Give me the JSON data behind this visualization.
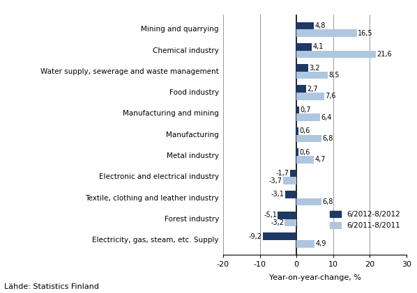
{
  "categories": [
    "Electricity, gas, steam, etc. Supply",
    "Forest industry",
    "Textile, clothing and leather industry",
    "Electronic and electrical industry",
    "Metal industry",
    "Manufacturing",
    "Manufacturing and mining",
    "Food industry",
    "Water supply, sewerage and waste management",
    "Chemical industry",
    "Mining and quarrying"
  ],
  "values_2012": [
    -9.2,
    -5.1,
    -3.1,
    -1.7,
    0.6,
    0.6,
    0.7,
    2.7,
    3.2,
    4.1,
    4.8
  ],
  "values_2011": [
    4.9,
    -3.2,
    6.8,
    -3.7,
    4.7,
    6.8,
    6.4,
    7.6,
    8.5,
    21.6,
    16.5
  ],
  "color_2012": "#1f3864",
  "color_2011": "#aec6e0",
  "xlim": [
    -20,
    30
  ],
  "xticks": [
    -20,
    -10,
    0,
    10,
    20,
    30
  ],
  "xlabel": "Year-on-year-change, %",
  "legend_2012": "6/2012-8/2012",
  "legend_2011": "6/2011-8/2011",
  "source": "Lähde: Statistics Finland",
  "bar_height": 0.35,
  "background_color": "#ffffff"
}
